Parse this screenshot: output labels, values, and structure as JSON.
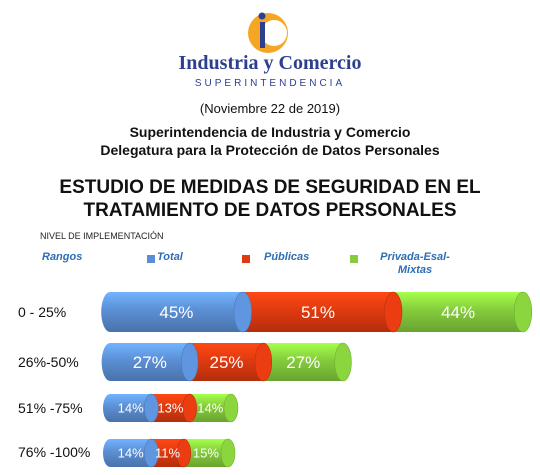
{
  "header": {
    "logo_text_1": "Industria y Comercio",
    "logo_text_2": "SUPERINTENDENCIA",
    "date": "(Noviembre 22 de 2019)",
    "org_line_1": "Superintendencia de Industria y Comercio",
    "org_line_2": "Delegatura para la Protección de Datos Personales"
  },
  "chart_data": {
    "type": "bar",
    "title_line_1": "ESTUDIO DE MEDIDAS DE SEGURIDAD EN EL",
    "title_line_2": "TRATAMIENTO DE DATOS PERSONALES",
    "subtitle": "NIVEL DE IMPLEMENTACIÓN",
    "categories_header": "Rangos",
    "categories": [
      "0 - 25%",
      "26%-50%",
      "51% -75%",
      "76% -100%"
    ],
    "series": [
      {
        "name": "Total",
        "values": [
          45,
          27,
          14,
          14
        ],
        "labels": [
          "45%",
          "27%",
          "14%",
          "14%"
        ],
        "color": "#5b8fd4"
      },
      {
        "name": "Públicas",
        "values": [
          51,
          25,
          13,
          11
        ],
        "labels": [
          "51%",
          "25%",
          "13%",
          "11%"
        ],
        "color": "#e03a10"
      },
      {
        "name": "Privada-Esal-Mixtas",
        "name_line_1": "Privada-Esal-",
        "name_line_2": "Mixtas",
        "values": [
          44,
          27,
          14,
          15
        ],
        "labels": [
          "44%",
          "27%",
          "14%",
          "15%"
        ],
        "color": "#84cc3c"
      }
    ],
    "stacked": true,
    "legend_position": "top"
  }
}
